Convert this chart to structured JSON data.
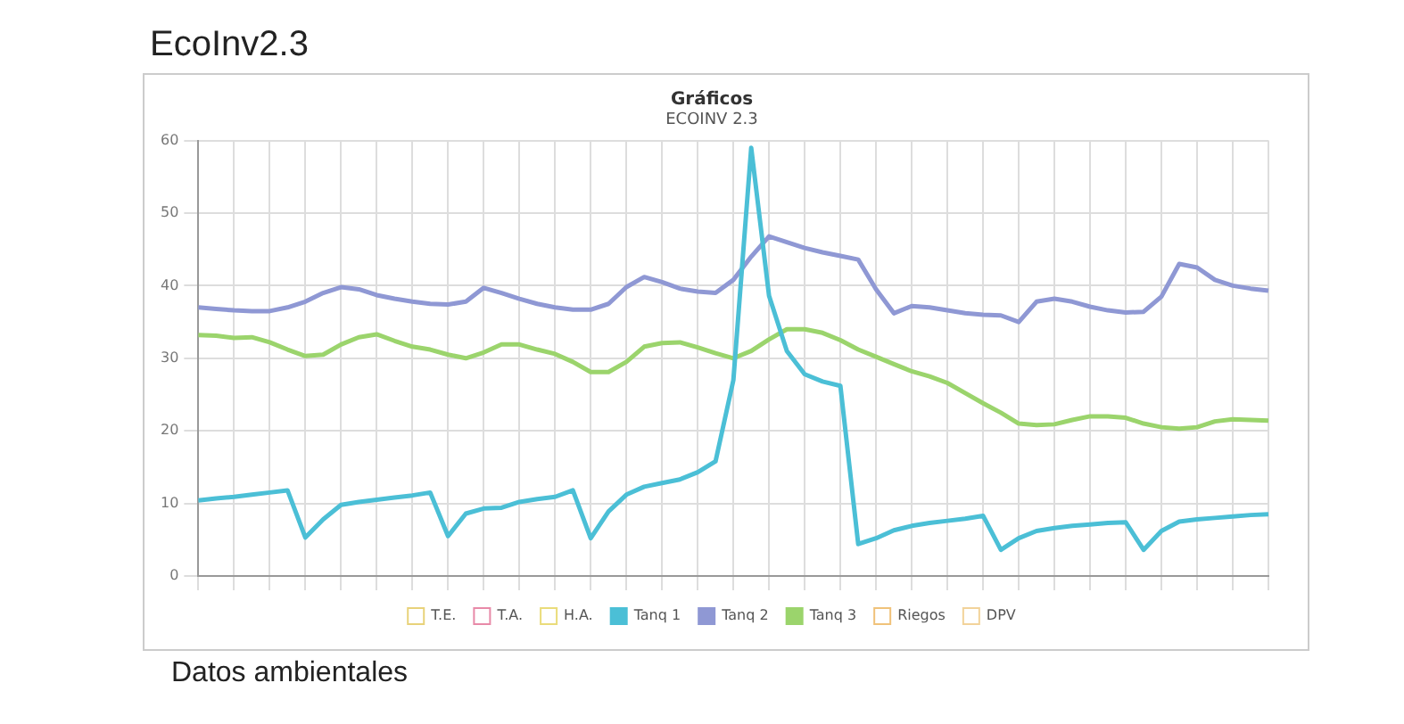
{
  "chart_data": {
    "type": "line",
    "title": "Gráficos",
    "subtitle": "ECOINV 2.3",
    "annotations": [
      "EcoInv2.3",
      "Datos ambientales"
    ],
    "categories": [
      null,
      null,
      null,
      null,
      null,
      null,
      null,
      null,
      null,
      null,
      null,
      null,
      null,
      null,
      null,
      null,
      null,
      null,
      null,
      null,
      null,
      null,
      null,
      null,
      null,
      null,
      null,
      null,
      null,
      null,
      null,
      null,
      null,
      null,
      null,
      null,
      null,
      null,
      null,
      null,
      null,
      null,
      null,
      null,
      null,
      null,
      null,
      null,
      null,
      null,
      null,
      null,
      null,
      null,
      null,
      null,
      null,
      null,
      null,
      null,
      null
    ],
    "series": [
      {
        "name": "T.E.",
        "color": "#e8d27a",
        "values": [
          null,
          null,
          null,
          null,
          null,
          null,
          null,
          null,
          null,
          null,
          null,
          null,
          null,
          null,
          null,
          null,
          null,
          null,
          null,
          null,
          null,
          null,
          null,
          null,
          null,
          null,
          null,
          null,
          null,
          null,
          null,
          null,
          null,
          null,
          null,
          null,
          null,
          null,
          null,
          null,
          null,
          null,
          null,
          null,
          null,
          null,
          null,
          null,
          null,
          null,
          null,
          null,
          null,
          null,
          null,
          null,
          null,
          null,
          null,
          null,
          null
        ]
      },
      {
        "name": "T.A.",
        "color": "#e88aa8",
        "values": [
          null,
          null,
          null,
          null,
          null,
          null,
          null,
          null,
          null,
          null,
          null,
          null,
          null,
          null,
          null,
          null,
          null,
          null,
          null,
          null,
          null,
          null,
          null,
          null,
          null,
          null,
          null,
          null,
          null,
          null,
          null,
          null,
          null,
          null,
          null,
          null,
          null,
          null,
          null,
          null,
          null,
          null,
          null,
          null,
          null,
          null,
          null,
          null,
          null,
          null,
          null,
          null,
          null,
          null,
          null,
          null,
          null,
          null,
          null,
          null,
          null
        ]
      },
      {
        "name": "H.A.",
        "color": "#eadc7a",
        "values": [
          null,
          null,
          null,
          null,
          null,
          null,
          null,
          null,
          null,
          null,
          null,
          null,
          null,
          null,
          null,
          null,
          null,
          null,
          null,
          null,
          null,
          null,
          null,
          null,
          null,
          null,
          null,
          null,
          null,
          null,
          null,
          null,
          null,
          null,
          null,
          null,
          null,
          null,
          null,
          null,
          null,
          null,
          null,
          null,
          null,
          null,
          null,
          null,
          null,
          null,
          null,
          null,
          null,
          null,
          null,
          null,
          null,
          null,
          null,
          null,
          null
        ]
      },
      {
        "name": "Tanq 1",
        "color": "#4bbfd6",
        "values": [
          10.4,
          10.7,
          10.9,
          11.2,
          11.5,
          11.8,
          5.3,
          7.8,
          9.8,
          10.2,
          10.5,
          10.8,
          11.1,
          11.5,
          5.5,
          8.6,
          9.3,
          9.4,
          10.2,
          10.6,
          10.9,
          11.8,
          5.2,
          8.9,
          11.2,
          12.3,
          12.8,
          13.3,
          14.3,
          15.8,
          27.0,
          59.0,
          38.6,
          31.0,
          27.8,
          26.8,
          26.2,
          4.4,
          5.2,
          6.3,
          6.9,
          7.3,
          7.6,
          7.9,
          8.3,
          3.6,
          5.2,
          6.2,
          6.6,
          6.9,
          7.1,
          7.3,
          7.4,
          3.6,
          6.2,
          7.5,
          7.8,
          8.0,
          8.2,
          8.4,
          8.5
        ]
      },
      {
        "name": "Tanq 2",
        "color": "#8f98d4",
        "values": [
          37.0,
          36.8,
          36.6,
          36.5,
          36.5,
          37.0,
          37.8,
          39.0,
          39.8,
          39.5,
          38.7,
          38.2,
          37.8,
          37.5,
          37.4,
          37.8,
          39.7,
          39.0,
          38.2,
          37.5,
          37.0,
          36.7,
          36.7,
          37.5,
          39.8,
          41.2,
          40.5,
          39.6,
          39.2,
          39.0,
          40.8,
          44.0,
          46.8,
          46.0,
          45.2,
          44.6,
          44.1,
          43.6,
          39.5,
          36.2,
          37.2,
          37.0,
          36.6,
          36.2,
          36.0,
          35.9,
          35.0,
          37.8,
          38.2,
          37.8,
          37.1,
          36.6,
          36.3,
          36.4,
          38.5,
          43.0,
          42.5,
          40.8,
          40.0,
          39.6,
          39.3
        ]
      },
      {
        "name": "Tanq 3",
        "color": "#9bd46c",
        "values": [
          33.2,
          33.1,
          32.8,
          32.9,
          32.2,
          31.2,
          30.3,
          30.5,
          31.9,
          32.9,
          33.3,
          32.4,
          31.6,
          31.2,
          30.5,
          30.0,
          30.8,
          31.9,
          31.9,
          31.2,
          30.6,
          29.5,
          28.1,
          28.1,
          29.5,
          31.6,
          32.1,
          32.2,
          31.5,
          30.7,
          30.0,
          31.0,
          32.6,
          34.0,
          34.0,
          33.5,
          32.5,
          31.2,
          30.2,
          29.2,
          28.2,
          27.5,
          26.6,
          25.2,
          23.8,
          22.5,
          21.0,
          20.8,
          20.9,
          21.5,
          22.0,
          22.0,
          21.8,
          21.0,
          20.5,
          20.3,
          20.5,
          21.3,
          21.6,
          21.5,
          21.4
        ]
      },
      {
        "name": "Riegos",
        "color": "#f0c27a",
        "values": [
          null,
          null,
          null,
          null,
          null,
          null,
          null,
          null,
          null,
          null,
          null,
          null,
          null,
          null,
          null,
          null,
          null,
          null,
          null,
          null,
          null,
          null,
          null,
          null,
          null,
          null,
          null,
          null,
          null,
          null,
          null,
          null,
          null,
          null,
          null,
          null,
          null,
          null,
          null,
          null,
          null,
          null,
          null,
          null,
          null,
          null,
          null,
          null,
          null,
          null,
          null,
          null,
          null,
          null,
          null,
          null,
          null,
          null,
          null,
          null,
          null
        ]
      },
      {
        "name": "DPV",
        "color": "#f2d39a",
        "values": [
          null,
          null,
          null,
          null,
          null,
          null,
          null,
          null,
          null,
          null,
          null,
          null,
          null,
          null,
          null,
          null,
          null,
          null,
          null,
          null,
          null,
          null,
          null,
          null,
          null,
          null,
          null,
          null,
          null,
          null,
          null,
          null,
          null,
          null,
          null,
          null,
          null,
          null,
          null,
          null,
          null,
          null,
          null,
          null,
          null,
          null,
          null,
          null,
          null,
          null,
          null,
          null,
          null,
          null,
          null,
          null,
          null,
          null,
          null,
          null,
          null
        ]
      }
    ],
    "ylim": [
      0,
      60
    ],
    "yticks": [
      0,
      10,
      20,
      30,
      40,
      50,
      60
    ],
    "grid": true,
    "legend": "bottom",
    "tick_labels": "y",
    "marker": "none",
    "line_style": "solid"
  }
}
